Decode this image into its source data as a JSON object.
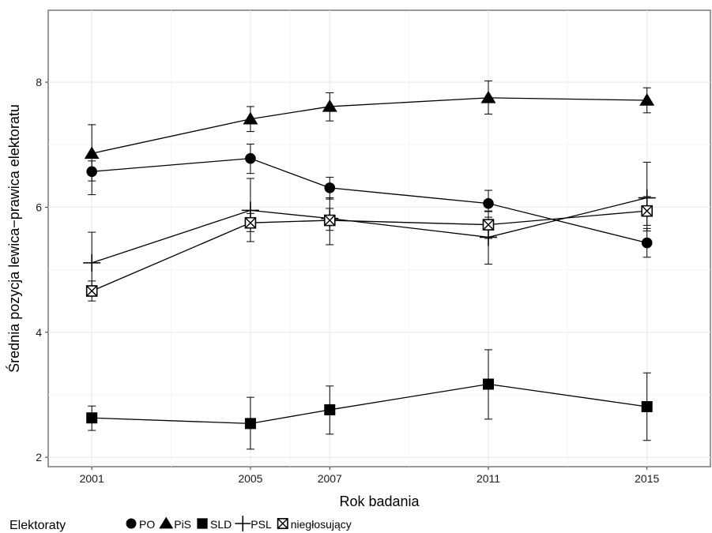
{
  "chart_data": {
    "type": "line",
    "xlabel": "Rok badania",
    "ylabel": "Średnia pozycja lewica−prawica elektoratu",
    "x": [
      2001,
      2005,
      2007,
      2011,
      2015
    ],
    "xlim": [
      1999.9,
      2016.6
    ],
    "ylim": [
      1.85,
      9.15
    ],
    "x_ticks": [
      "2001",
      "2005",
      "2007",
      "2011",
      "2015"
    ],
    "y_ticks": [
      "2",
      "4",
      "6",
      "8"
    ],
    "grid": true,
    "legend": {
      "title": "Elektoraty",
      "position": "bottom"
    },
    "series": [
      {
        "name": "PO",
        "marker": "circle",
        "values": [
          6.57,
          6.78,
          6.31,
          6.06,
          5.43
        ],
        "lower": [
          6.2,
          6.54,
          6.13,
          5.84,
          5.2
        ],
        "upper": [
          6.74,
          7.01,
          6.48,
          6.27,
          5.66
        ]
      },
      {
        "name": "PiS",
        "marker": "triangle",
        "values": [
          6.86,
          7.41,
          7.61,
          7.75,
          7.71
        ],
        "lower": [
          6.42,
          7.21,
          7.38,
          7.49,
          7.51
        ],
        "upper": [
          7.32,
          7.61,
          7.83,
          8.02,
          7.91
        ]
      },
      {
        "name": "SLD",
        "marker": "square",
        "values": [
          2.63,
          2.54,
          2.76,
          3.17,
          2.81
        ],
        "lower": [
          2.43,
          2.13,
          2.37,
          2.61,
          2.27
        ],
        "upper": [
          2.82,
          2.96,
          3.14,
          3.72,
          3.35
        ]
      },
      {
        "name": "PSL",
        "marker": "plus",
        "values": [
          5.11,
          5.95,
          5.82,
          5.52,
          6.15
        ],
        "lower": [
          4.62,
          5.45,
          5.4,
          5.09,
          5.62
        ],
        "upper": [
          5.6,
          6.46,
          6.15,
          5.94,
          6.72
        ]
      },
      {
        "name": "niegłosujący",
        "marker": "boxcross",
        "values": [
          4.66,
          5.75,
          5.79,
          5.72,
          5.94
        ],
        "lower": [
          4.5,
          5.61,
          5.63,
          5.5,
          5.71
        ],
        "upper": [
          4.82,
          5.9,
          5.98,
          5.93,
          6.17
        ]
      }
    ]
  }
}
